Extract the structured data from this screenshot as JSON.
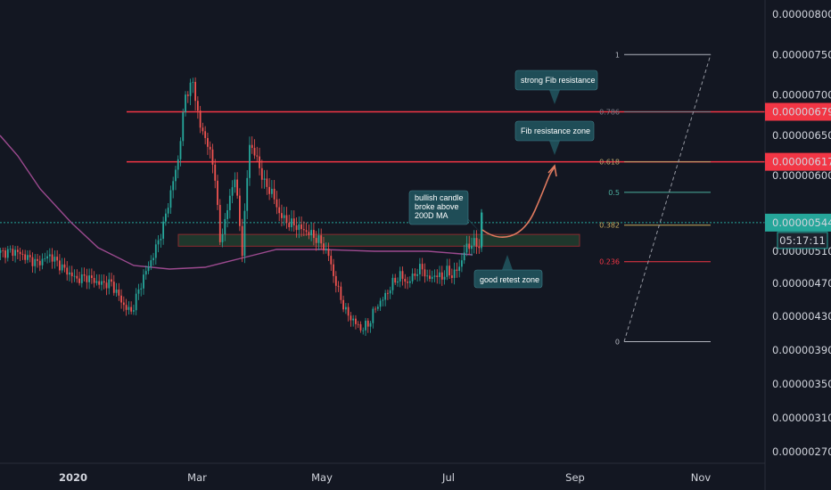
{
  "chart_data": {
    "type": "candlestick",
    "x_ticks": [
      "2020",
      "Mar",
      "May",
      "Jul",
      "Sep",
      "Nov"
    ],
    "y_ticks": [
      8e-06,
      7.5e-06,
      7e-06,
      6.5e-06,
      6e-06,
      5.1e-06,
      4.7e-06,
      4.3e-06,
      3.9e-06,
      3.5e-06,
      3.1e-06,
      2.7e-06
    ],
    "y_tick_labels": [
      "0.00000800",
      "0.00000750",
      "0.00000700",
      "0.00000650",
      "0.00000600",
      "0.00000510",
      "0.00000470",
      "0.00000430",
      "0.00000390",
      "0.00000350",
      "0.00000310",
      "0.00000270"
    ],
    "current_price": {
      "value": 5.44e-06,
      "label": "0.00000544",
      "countdown": "05:17:11"
    },
    "resistance_lines": [
      {
        "value": 6.79e-06,
        "label": "0.00000679",
        "color": "#f23645"
      },
      {
        "value": 6.17e-06,
        "label": "0.00000617",
        "color": "#f23645"
      }
    ],
    "support_zone": {
      "low": 5.16e-06,
      "high": 5.3e-06
    },
    "moving_average": {
      "color": "#9c4a8f"
    },
    "fib_levels": [
      {
        "ratio": "1",
        "value": 7.5e-06,
        "color": "#b2b5be"
      },
      {
        "ratio": "0.786",
        "value": 6.79e-06,
        "color": "#787b86"
      },
      {
        "ratio": "0.618",
        "value": 6.17e-06,
        "color": "#b8a36a"
      },
      {
        "ratio": "0.5",
        "value": 5.8e-06,
        "color": "#4caf9f"
      },
      {
        "ratio": "0.382",
        "value": 5.41e-06,
        "color": "#c9a95c"
      },
      {
        "ratio": "0.236",
        "value": 4.97e-06,
        "color": "#f23645"
      },
      {
        "ratio": "0",
        "value": 4e-06,
        "color": "#b2b5be"
      }
    ],
    "annotations": [
      {
        "id": "strong",
        "lines": [
          "strong Fib resistance"
        ]
      },
      {
        "id": "zone",
        "lines": [
          "Fib resistance zone"
        ]
      },
      {
        "id": "bull",
        "lines": [
          "bullish candle",
          "broke above",
          "200D MA"
        ]
      },
      {
        "id": "retest",
        "lines": [
          "good retest zone"
        ]
      }
    ],
    "colors": {
      "up": "#26a69a",
      "down": "#ef5350",
      "background": "#131722",
      "text": "#d1d4dc",
      "callout": "#1f4d57"
    }
  }
}
